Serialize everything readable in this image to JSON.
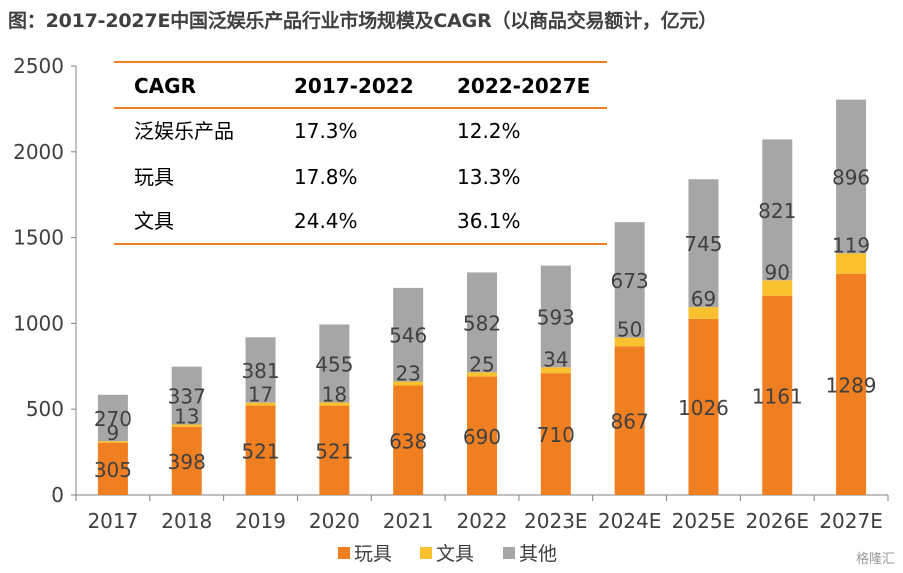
{
  "chart_data": {
    "type": "bar",
    "stacked": true,
    "title": "图：2017-2027E中国泛娱乐产品行业市场规模及CAGR（以商品交易额计，亿元）",
    "categories": [
      "2017",
      "2018",
      "2019",
      "2020",
      "2021",
      "2022",
      "2023E",
      "2024E",
      "2025E",
      "2026E",
      "2027E"
    ],
    "series": [
      {
        "name": "玩具",
        "color": "#f07f22",
        "values": [
          305,
          398,
          521,
          521,
          638,
          690,
          710,
          867,
          1026,
          1161,
          1289
        ]
      },
      {
        "name": "文具",
        "color": "#fbc02d",
        "values": [
          9,
          13,
          17,
          18,
          23,
          25,
          34,
          50,
          69,
          90,
          119
        ]
      },
      {
        "name": "其他",
        "color": "#a6a6a6",
        "values": [
          270,
          337,
          381,
          455,
          546,
          582,
          593,
          673,
          745,
          821,
          896
        ]
      }
    ],
    "ylim": [
      0,
      2500
    ],
    "yticks": [
      0,
      500,
      1000,
      1500,
      2000,
      2500
    ],
    "legend_position": "bottom",
    "grid": false,
    "cagr_table": {
      "headers": [
        "CAGR",
        "2017-2022",
        "2022-2027E"
      ],
      "rows": [
        [
          "泛娱乐产品",
          "17.3%",
          "12.2%"
        ],
        [
          "玩具",
          "17.8%",
          "13.3%"
        ],
        [
          "文具",
          "24.4%",
          "36.1%"
        ]
      ]
    }
  },
  "watermark": "格隆汇"
}
